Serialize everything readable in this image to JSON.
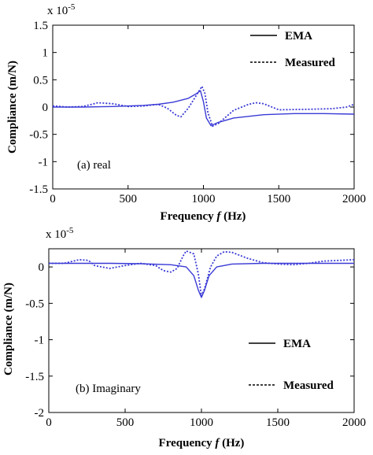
{
  "chart_data": [
    {
      "type": "line",
      "annotation": "(a) real",
      "multiplier": "x 10",
      "multiplier_exp": "-5",
      "xlabel": "Frequency",
      "xlabel_var": "f",
      "xlabel_unit": "(Hz)",
      "ylabel": "Compliance (m/N)",
      "xlim": [
        0,
        2000
      ],
      "ylim": [
        -1.5,
        1.5
      ],
      "xticks": [
        "0",
        "500",
        "1000",
        "1500",
        "2000"
      ],
      "yticks": [
        "1.5",
        "1",
        "0.5",
        "0",
        "-0.5",
        "-1",
        "-1.5"
      ],
      "legend_position": "top-right",
      "series": [
        {
          "name": "EMA",
          "style": "solid",
          "color": "#3a3ad6",
          "points": [
            [
              0,
              0.0
            ],
            [
              200,
              0.0
            ],
            [
              400,
              0.01
            ],
            [
              600,
              0.03
            ],
            [
              700,
              0.05
            ],
            [
              800,
              0.09
            ],
            [
              900,
              0.16
            ],
            [
              950,
              0.24
            ],
            [
              980,
              0.3
            ],
            [
              1000,
              0.1
            ],
            [
              1020,
              -0.2
            ],
            [
              1050,
              -0.34
            ],
            [
              1100,
              -0.28
            ],
            [
              1200,
              -0.2
            ],
            [
              1400,
              -0.14
            ],
            [
              1600,
              -0.12
            ],
            [
              1800,
              -0.12
            ],
            [
              2000,
              -0.13
            ]
          ]
        },
        {
          "name": "Measured",
          "style": "dotted",
          "color": "#3a3ad6",
          "points": [
            [
              0,
              0.02
            ],
            [
              100,
              0.0
            ],
            [
              200,
              0.01
            ],
            [
              300,
              0.08
            ],
            [
              400,
              0.06
            ],
            [
              500,
              0.01
            ],
            [
              600,
              0.02
            ],
            [
              700,
              0.05
            ],
            [
              760,
              -0.02
            ],
            [
              820,
              -0.15
            ],
            [
              850,
              -0.18
            ],
            [
              900,
              -0.02
            ],
            [
              950,
              0.2
            ],
            [
              990,
              0.38
            ],
            [
              1010,
              0.25
            ],
            [
              1030,
              -0.1
            ],
            [
              1060,
              -0.35
            ],
            [
              1100,
              -0.3
            ],
            [
              1200,
              -0.06
            ],
            [
              1300,
              0.05
            ],
            [
              1350,
              0.08
            ],
            [
              1400,
              0.06
            ],
            [
              1500,
              -0.05
            ],
            [
              1700,
              -0.04
            ],
            [
              1850,
              -0.03
            ],
            [
              1950,
              0.0
            ],
            [
              2000,
              0.05
            ]
          ]
        }
      ]
    },
    {
      "type": "line",
      "annotation": "(b) Imaginary",
      "multiplier": "x 10",
      "multiplier_exp": "-5",
      "xlabel": "Frequency",
      "xlabel_var": "f",
      "xlabel_unit": "(Hz)",
      "ylabel": "Compliance (m/N)",
      "xlim": [
        0,
        2000
      ],
      "ylim": [
        -2,
        0.25
      ],
      "xticks": [
        "0",
        "500",
        "1000",
        "1500",
        "2000"
      ],
      "yticks": [
        "0",
        "-0.5",
        "-1",
        "-1.5",
        "-2"
      ],
      "legend_position": "bottom-right",
      "series": [
        {
          "name": "EMA",
          "style": "solid",
          "color": "#3a3ad6",
          "points": [
            [
              0,
              0.05
            ],
            [
              200,
              0.05
            ],
            [
              400,
              0.05
            ],
            [
              600,
              0.045
            ],
            [
              800,
              0.03
            ],
            [
              900,
              0.0
            ],
            [
              950,
              -0.12
            ],
            [
              980,
              -0.32
            ],
            [
              1000,
              -0.42
            ],
            [
              1020,
              -0.32
            ],
            [
              1050,
              -0.12
            ],
            [
              1100,
              0.0
            ],
            [
              1200,
              0.04
            ],
            [
              1400,
              0.05
            ],
            [
              1600,
              0.05
            ],
            [
              1800,
              0.05
            ],
            [
              2000,
              0.05
            ]
          ]
        },
        {
          "name": "Measured",
          "style": "dotted",
          "color": "#3a3ad6",
          "points": [
            [
              0,
              0.05
            ],
            [
              100,
              0.05
            ],
            [
              200,
              0.1
            ],
            [
              260,
              0.09
            ],
            [
              300,
              0.02
            ],
            [
              400,
              -0.02
            ],
            [
              500,
              0.02
            ],
            [
              600,
              0.05
            ],
            [
              700,
              0.02
            ],
            [
              750,
              -0.05
            ],
            [
              800,
              -0.07
            ],
            [
              840,
              -0.02
            ],
            [
              880,
              0.15
            ],
            [
              900,
              0.22
            ],
            [
              950,
              0.18
            ],
            [
              980,
              -0.1
            ],
            [
              1000,
              -0.4
            ],
            [
              1020,
              -0.3
            ],
            [
              1060,
              0.0
            ],
            [
              1100,
              0.15
            ],
            [
              1150,
              0.21
            ],
            [
              1200,
              0.2
            ],
            [
              1300,
              0.12
            ],
            [
              1400,
              0.06
            ],
            [
              1500,
              0.04
            ],
            [
              1600,
              0.03
            ],
            [
              1700,
              0.05
            ],
            [
              1800,
              0.08
            ],
            [
              1900,
              0.09
            ],
            [
              2000,
              0.1
            ]
          ]
        }
      ]
    }
  ]
}
